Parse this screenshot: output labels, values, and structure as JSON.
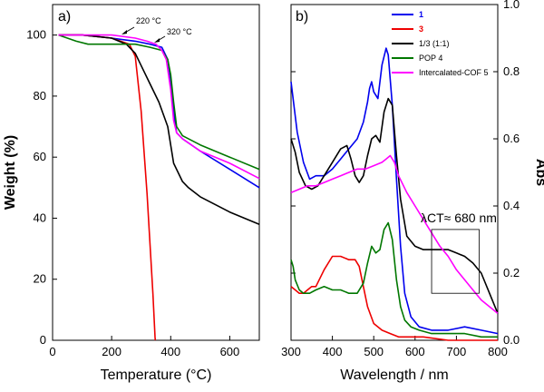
{
  "chart_data": [
    {
      "panel": "a)",
      "type": "line",
      "xlabel": "Temperature (°C)",
      "ylabel": "Weight (%)",
      "xlim": [
        0,
        700
      ],
      "ylim": [
        0,
        110
      ],
      "xticks": [
        0,
        200,
        400,
        600
      ],
      "yticks": [
        0,
        20,
        40,
        60,
        80,
        100
      ],
      "annotations": [
        {
          "text": "220 °C",
          "x": 220,
          "y": 97.5
        },
        {
          "text": "320 °C",
          "x": 320,
          "y": 95.5
        }
      ],
      "series": [
        {
          "color": "#0000ee",
          "x": [
            20,
            100,
            200,
            280,
            330,
            370,
            390,
            400,
            410,
            420,
            440,
            500,
            600,
            700
          ],
          "y": [
            100,
            100,
            99,
            98,
            97,
            96,
            92,
            85,
            75,
            68,
            66,
            62,
            56,
            50
          ]
        },
        {
          "color": "#ee0000",
          "x": [
            20,
            100,
            200,
            260,
            280,
            300,
            320,
            340,
            347,
            348
          ],
          "y": [
            100,
            100,
            99,
            97,
            93,
            75,
            48,
            15,
            1,
            0
          ]
        },
        {
          "color": "#000000",
          "x": [
            20,
            100,
            200,
            250,
            280,
            300,
            330,
            360,
            390,
            410,
            440,
            460,
            500,
            600,
            700
          ],
          "y": [
            100,
            100,
            99,
            97,
            94,
            90,
            84,
            78,
            70,
            58,
            52,
            50,
            47,
            42,
            38
          ]
        },
        {
          "color": "#007700",
          "x": [
            20,
            50,
            80,
            120,
            200,
            280,
            330,
            370,
            390,
            400,
            410,
            420,
            440,
            500,
            600,
            700
          ],
          "y": [
            100,
            99,
            98,
            97,
            97,
            97,
            96,
            95,
            92,
            87,
            78,
            70,
            67,
            64,
            60,
            56
          ]
        },
        {
          "color": "#ff00ff",
          "x": [
            20,
            100,
            200,
            280,
            320,
            350,
            370,
            385,
            400,
            410,
            420,
            440,
            500,
            600,
            700
          ],
          "y": [
            100,
            100,
            100,
            99,
            98,
            97,
            95,
            92,
            82,
            72,
            68,
            66,
            62,
            58,
            53
          ]
        }
      ]
    },
    {
      "panel": "b)",
      "type": "line",
      "xlabel": "Wavelength / nm",
      "ylabel": "Abs",
      "xlim": [
        300,
        800
      ],
      "ylim": [
        0,
        1.0
      ],
      "xticks": [
        300,
        400,
        500,
        600,
        700,
        800
      ],
      "yticks": [
        0.0,
        0.2,
        0.4,
        0.6,
        0.8,
        1.0
      ],
      "annotation": {
        "text": "λCT≈ 680 nm",
        "box_x": [
          640,
          755
        ],
        "box_y": [
          0.14,
          0.33
        ]
      },
      "legend": [
        {
          "label": "1",
          "color": "#0000ee",
          "label_color": "#0000ee"
        },
        {
          "label": "3",
          "color": "#ee0000",
          "label_color": "#ee0000"
        },
        {
          "label": "1/3 (1:1)",
          "color": "#000000"
        },
        {
          "label": "POP 4",
          "color": "#007700"
        },
        {
          "label": "Intercalated-COF 5",
          "color": "#ff00ff"
        }
      ],
      "series": [
        {
          "color": "#0000ee",
          "x": [
            300,
            315,
            330,
            345,
            360,
            380,
            400,
            420,
            440,
            460,
            475,
            485,
            490,
            495,
            500,
            510,
            520,
            530,
            535,
            545,
            555,
            565,
            575,
            590,
            610,
            640,
            680,
            720,
            760,
            800
          ],
          "y": [
            0.77,
            0.62,
            0.53,
            0.48,
            0.49,
            0.49,
            0.51,
            0.54,
            0.57,
            0.6,
            0.65,
            0.71,
            0.75,
            0.77,
            0.74,
            0.72,
            0.82,
            0.87,
            0.85,
            0.7,
            0.48,
            0.28,
            0.14,
            0.07,
            0.04,
            0.03,
            0.03,
            0.04,
            0.03,
            0.02
          ]
        },
        {
          "color": "#ee0000",
          "x": [
            300,
            310,
            320,
            330,
            340,
            350,
            360,
            380,
            400,
            420,
            440,
            455,
            465,
            475,
            485,
            500,
            520,
            540,
            560,
            580,
            620,
            680,
            740,
            800
          ],
          "y": [
            0.16,
            0.15,
            0.14,
            0.14,
            0.15,
            0.16,
            0.16,
            0.21,
            0.25,
            0.25,
            0.24,
            0.24,
            0.22,
            0.16,
            0.1,
            0.05,
            0.03,
            0.02,
            0.01,
            0.01,
            0.01,
            0.0,
            0.0,
            0.0
          ]
        },
        {
          "color": "#000000",
          "x": [
            300,
            310,
            320,
            335,
            350,
            365,
            380,
            400,
            420,
            435,
            445,
            455,
            465,
            475,
            485,
            495,
            505,
            515,
            525,
            535,
            545,
            555,
            565,
            580,
            600,
            620,
            640,
            660,
            680,
            700,
            720,
            740,
            760,
            780,
            800
          ],
          "y": [
            0.6,
            0.56,
            0.5,
            0.46,
            0.45,
            0.46,
            0.49,
            0.53,
            0.57,
            0.58,
            0.54,
            0.49,
            0.47,
            0.49,
            0.55,
            0.6,
            0.61,
            0.59,
            0.68,
            0.72,
            0.7,
            0.55,
            0.42,
            0.31,
            0.28,
            0.27,
            0.27,
            0.27,
            0.27,
            0.26,
            0.25,
            0.23,
            0.2,
            0.14,
            0.08
          ]
        },
        {
          "color": "#007700",
          "x": [
            300,
            305,
            310,
            320,
            330,
            345,
            360,
            380,
            400,
            420,
            440,
            460,
            475,
            485,
            495,
            505,
            515,
            525,
            535,
            545,
            555,
            565,
            575,
            590,
            610,
            640,
            680,
            720,
            760,
            800
          ],
          "y": [
            0.24,
            0.22,
            0.18,
            0.15,
            0.14,
            0.14,
            0.15,
            0.16,
            0.15,
            0.15,
            0.14,
            0.14,
            0.17,
            0.23,
            0.28,
            0.26,
            0.27,
            0.33,
            0.35,
            0.3,
            0.18,
            0.1,
            0.06,
            0.04,
            0.03,
            0.02,
            0.02,
            0.02,
            0.01,
            0.01
          ]
        },
        {
          "color": "#ff00ff",
          "x": [
            300,
            320,
            340,
            360,
            380,
            400,
            420,
            440,
            460,
            480,
            500,
            520,
            530,
            540,
            550,
            560,
            580,
            600,
            620,
            640,
            660,
            680,
            700,
            720,
            740,
            760,
            780,
            800
          ],
          "y": [
            0.44,
            0.45,
            0.46,
            0.46,
            0.47,
            0.48,
            0.49,
            0.5,
            0.51,
            0.51,
            0.52,
            0.53,
            0.54,
            0.55,
            0.53,
            0.49,
            0.44,
            0.4,
            0.36,
            0.32,
            0.28,
            0.25,
            0.21,
            0.18,
            0.15,
            0.12,
            0.1,
            0.08
          ]
        }
      ]
    }
  ]
}
